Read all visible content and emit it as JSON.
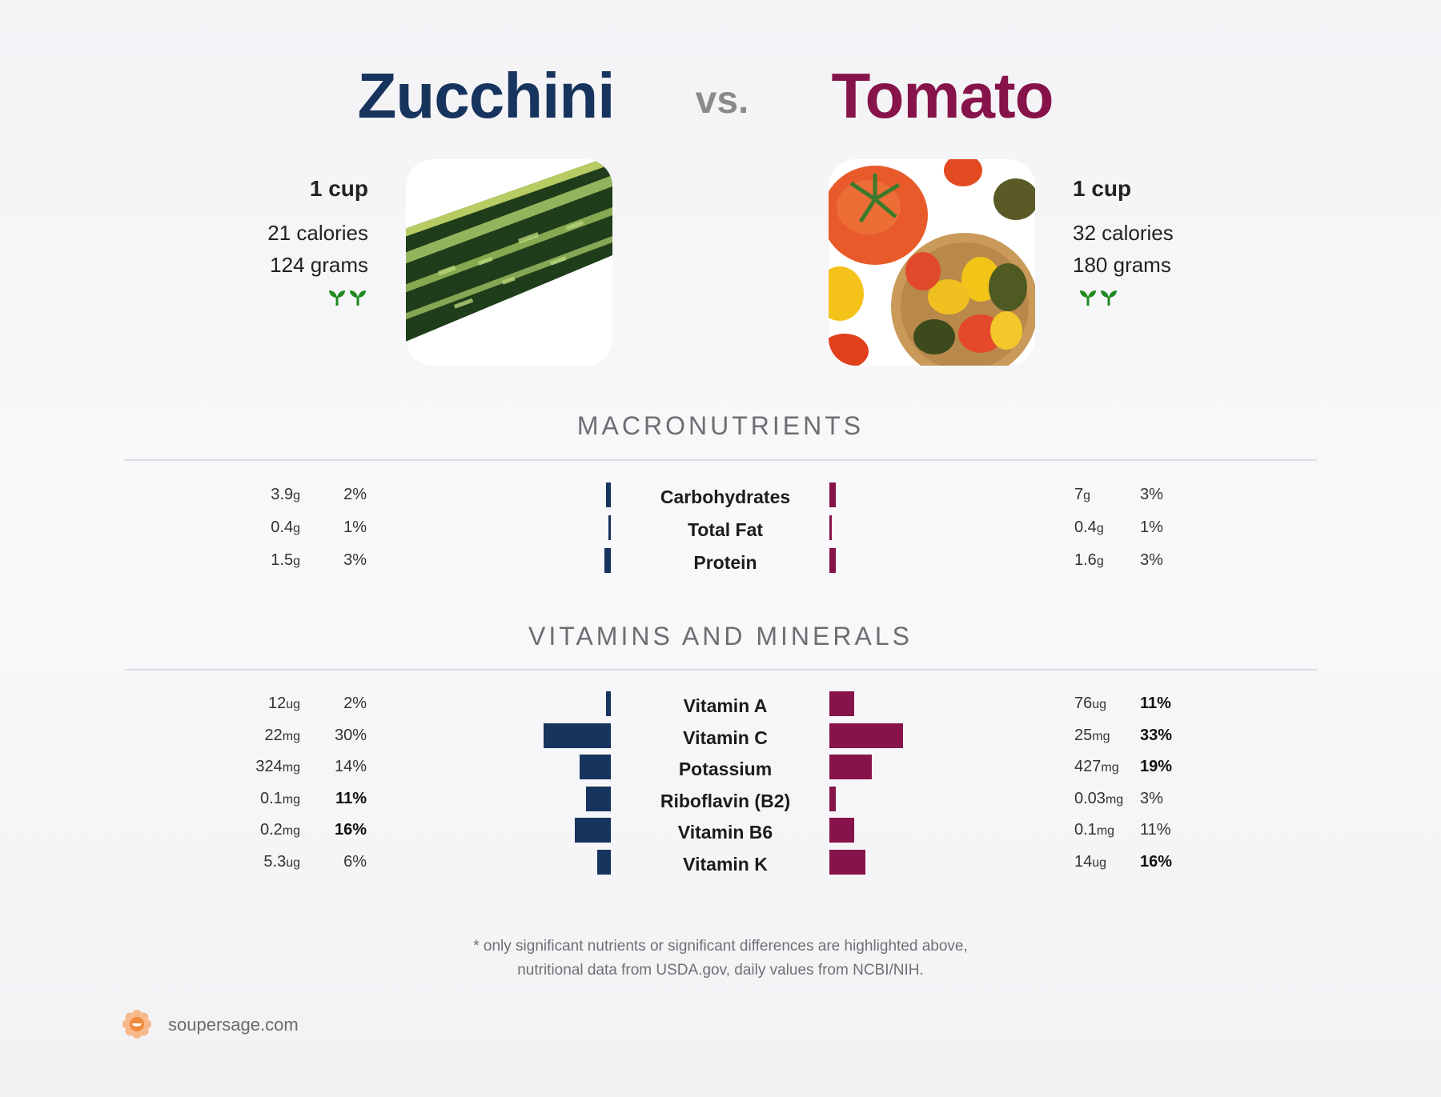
{
  "header": {
    "left_name": "Zucchini",
    "vs": "vs.",
    "right_name": "Tomato"
  },
  "colors": {
    "left": "#17345e",
    "right": "#861349",
    "leaf": "#1f8a1f"
  },
  "left_food": {
    "serving": "1 cup",
    "calories": "21 calories",
    "grams": "124 grams",
    "icon": "sprout-icon"
  },
  "right_food": {
    "serving": "1 cup",
    "calories": "32 calories",
    "grams": "180 grams",
    "icon": "sprout-icon"
  },
  "sections": {
    "macro": "MACRONUTRIENTS",
    "vitamins": "VITAMINS AND MINERALS"
  },
  "chart_data": [
    {
      "type": "bar",
      "title": "MACRONUTRIENTS",
      "categories": [
        "Carbohydrates",
        "Total Fat",
        "Protein"
      ],
      "series": [
        {
          "name": "Zucchini",
          "values": [
            2,
            1,
            3
          ],
          "amounts": [
            "3.9",
            "0.4",
            "1.5"
          ],
          "units": [
            "g",
            "g",
            "g"
          ],
          "pct_labels": [
            "2%",
            "1%",
            "3%"
          ],
          "bold": [
            false,
            false,
            false
          ]
        },
        {
          "name": "Tomato",
          "values": [
            3,
            1,
            3
          ],
          "amounts": [
            "7",
            "0.4",
            "1.6"
          ],
          "units": [
            "g",
            "g",
            "g"
          ],
          "pct_labels": [
            "3%",
            "1%",
            "3%"
          ],
          "bold": [
            false,
            false,
            false
          ]
        }
      ]
    },
    {
      "type": "bar",
      "title": "VITAMINS AND MINERALS",
      "categories": [
        "Vitamin A",
        "Vitamin C",
        "Potassium",
        "Riboflavin (B2)",
        "Vitamin B6",
        "Vitamin K"
      ],
      "series": [
        {
          "name": "Zucchini",
          "values": [
            2,
            30,
            14,
            11,
            16,
            6
          ],
          "amounts": [
            "12",
            "22",
            "324",
            "0.1",
            "0.2",
            "5.3"
          ],
          "units": [
            "ug",
            "mg",
            "mg",
            "mg",
            "mg",
            "ug"
          ],
          "pct_labels": [
            "2%",
            "30%",
            "14%",
            "11%",
            "16%",
            "6%"
          ],
          "bold": [
            false,
            false,
            false,
            true,
            true,
            false
          ]
        },
        {
          "name": "Tomato",
          "values": [
            11,
            33,
            19,
            3,
            11,
            16
          ],
          "amounts": [
            "76",
            "25",
            "427",
            "0.03",
            "0.1",
            "14"
          ],
          "units": [
            "ug",
            "mg",
            "mg",
            "mg",
            "mg",
            "ug"
          ],
          "pct_labels": [
            "11%",
            "33%",
            "19%",
            "3%",
            "11%",
            "16%"
          ],
          "bold": [
            true,
            true,
            true,
            false,
            false,
            true
          ]
        }
      ]
    }
  ],
  "footnote": {
    "line1": "* only significant nutrients or significant differences are highlighted above,",
    "line2": "nutritional data from USDA.gov, daily values from NCBI/NIH."
  },
  "brand": "soupersage.com"
}
